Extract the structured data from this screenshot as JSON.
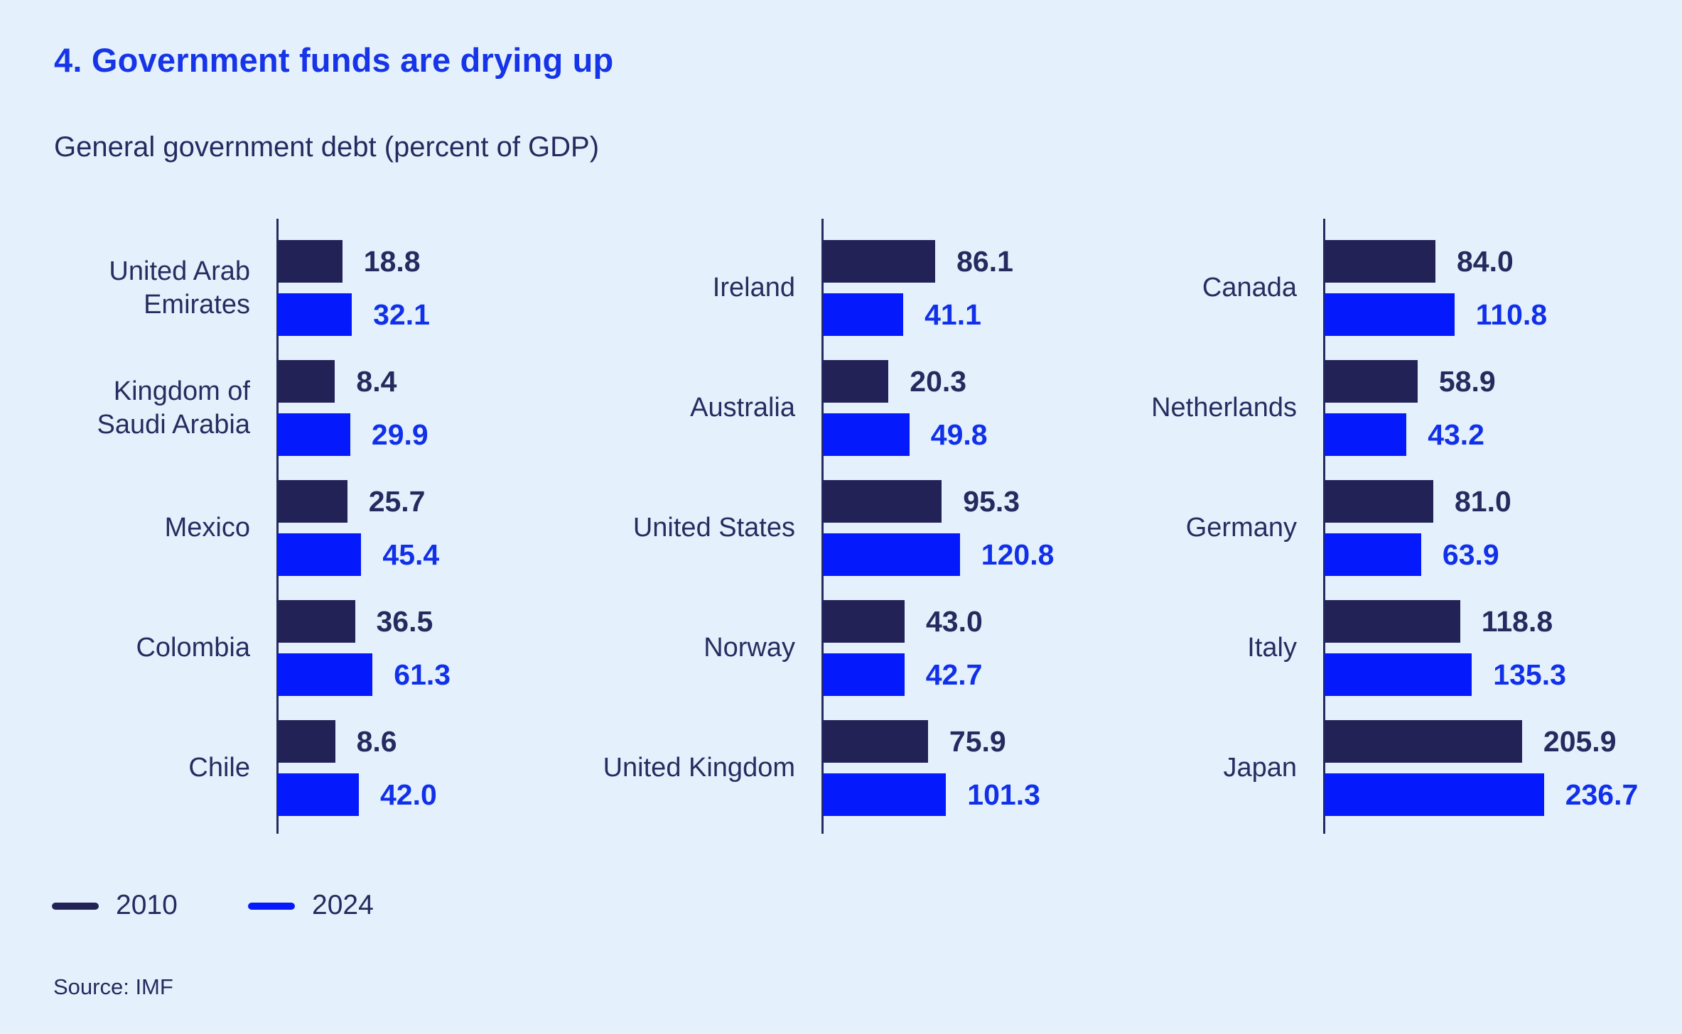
{
  "page": {
    "title": "4. Government funds are drying up",
    "subtitle": "General government debt (percent of GDP)",
    "source": "Source: IMF"
  },
  "legend": {
    "items": [
      {
        "label": "2010",
        "color": "#232257"
      },
      {
        "label": "2024",
        "color": "#0419fc"
      }
    ]
  },
  "colors": {
    "background": "#e4f1fc",
    "title_text": "#1634e8",
    "dark_text": "#242b5e",
    "axis": "#242b5e",
    "bar_2010": "#232257",
    "bar_2024": "#0419fc",
    "value_text_2010": "#252b5e",
    "value_text_2024": "#1130e9"
  },
  "chart_data": {
    "type": "bar",
    "orientation": "horizontal",
    "title": "4. Government funds are drying up",
    "subtitle": "General government debt (percent of GDP)",
    "unit": "percent of GDP",
    "series": [
      "2010",
      "2024"
    ],
    "legend_position": "bottom-left",
    "grid": false,
    "value_labels_shown": true,
    "panels": [
      {
        "countries": [
          {
            "label": "United Arab Emirates",
            "label_lines": [
              "United Arab",
              "Emirates"
            ],
            "2010": 18.8,
            "2024": 32.1
          },
          {
            "label": "Kingdom of Saudi Arabia",
            "label_lines": [
              "Kingdom of",
              "Saudi Arabia"
            ],
            "2010": 8.4,
            "2024": 29.9
          },
          {
            "label": "Mexico",
            "label_lines": [
              "Mexico"
            ],
            "2010": 25.7,
            "2024": 45.4
          },
          {
            "label": "Colombia",
            "label_lines": [
              "Colombia"
            ],
            "2010": 36.5,
            "2024": 61.3
          },
          {
            "label": "Chile",
            "label_lines": [
              "Chile"
            ],
            "2010": 8.6,
            "2024": 42.0
          }
        ]
      },
      {
        "countries": [
          {
            "label": "Ireland",
            "label_lines": [
              "Ireland"
            ],
            "2010": 86.1,
            "2024": 41.1
          },
          {
            "label": "Australia",
            "label_lines": [
              "Australia"
            ],
            "2010": 20.3,
            "2024": 49.8
          },
          {
            "label": "United States",
            "label_lines": [
              "United States"
            ],
            "2010": 95.3,
            "2024": 120.8
          },
          {
            "label": "Norway",
            "label_lines": [
              "Norway"
            ],
            "2010": 43.0,
            "2024": 42.7
          },
          {
            "label": "United Kingdom",
            "label_lines": [
              "United Kingdom"
            ],
            "2010": 75.9,
            "2024": 101.3
          }
        ]
      },
      {
        "countries": [
          {
            "label": "Canada",
            "label_lines": [
              "Canada"
            ],
            "2010": 84.0,
            "2024": 110.8
          },
          {
            "label": "Netherlands",
            "label_lines": [
              "Netherlands"
            ],
            "2010": 58.9,
            "2024": 43.2
          },
          {
            "label": "Germany",
            "label_lines": [
              "Germany"
            ],
            "2010": 81.0,
            "2024": 63.9
          },
          {
            "label": "Italy",
            "label_lines": [
              "Italy"
            ],
            "2010": 118.8,
            "2024": 135.3
          },
          {
            "label": "Japan",
            "label_lines": [
              "Japan"
            ],
            "2010": 205.9,
            "2024": 236.7
          }
        ]
      }
    ]
  }
}
